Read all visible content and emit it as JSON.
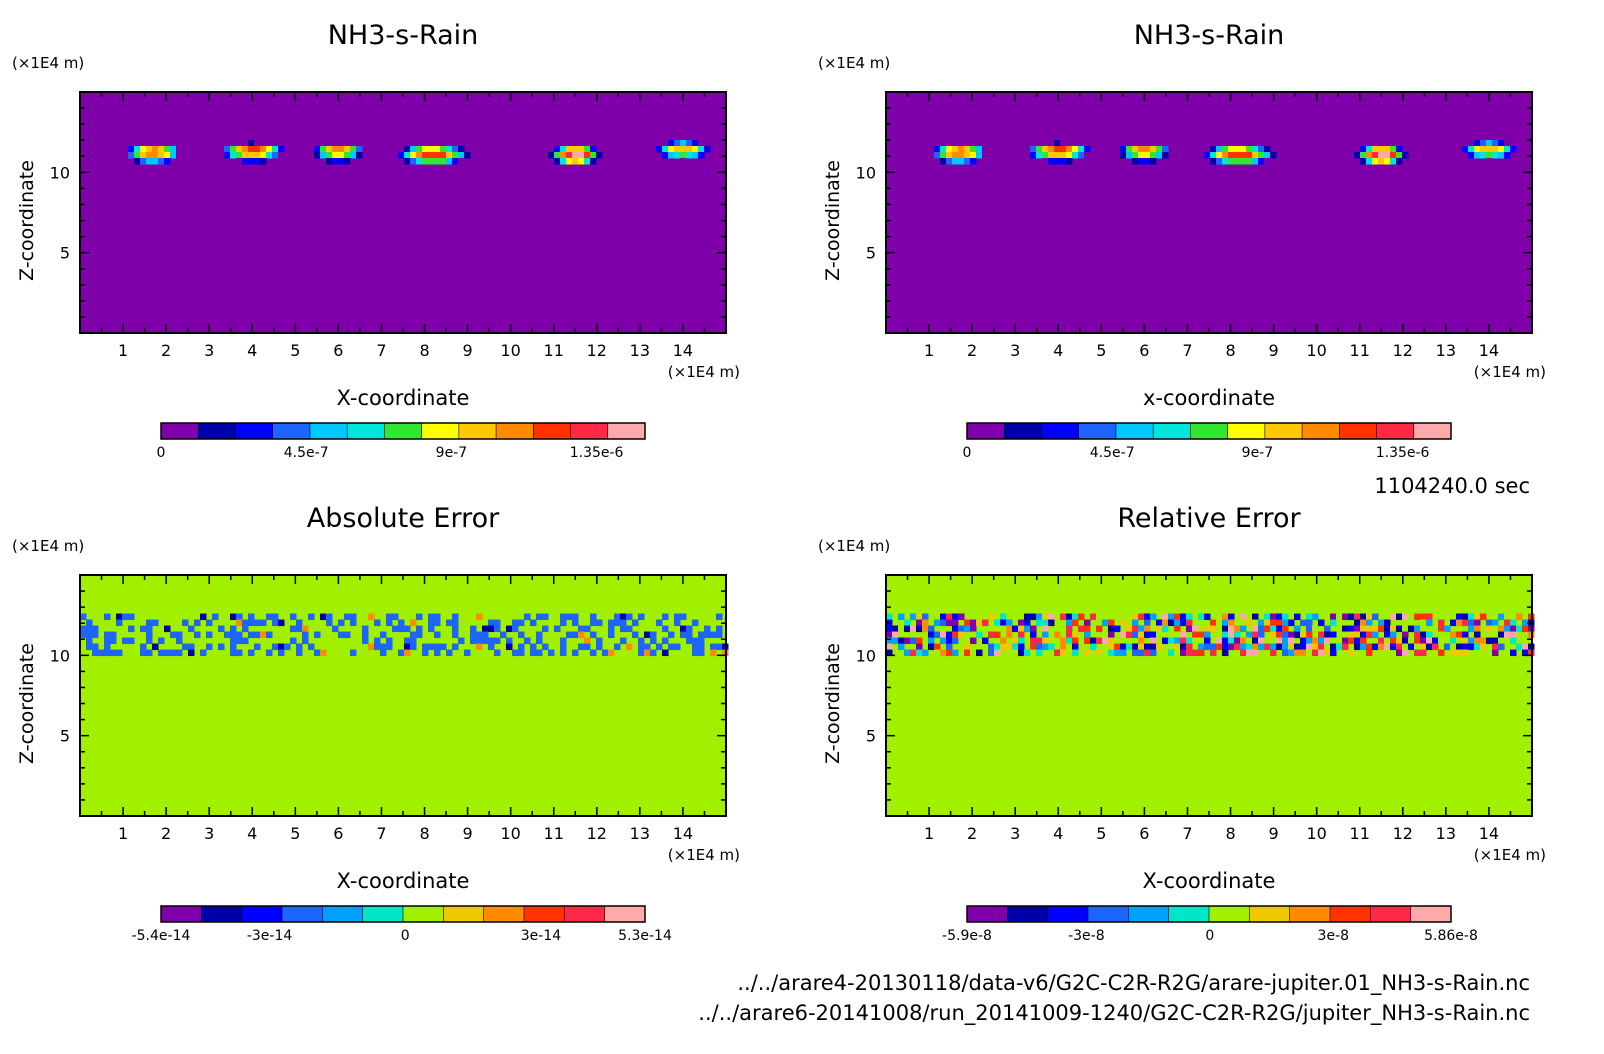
{
  "figure": {
    "time_label": "1104240.0 sec",
    "files": [
      "../../arare4-20130118/data-v6/G2C-C2R-R2G/arare-jupiter.01_NH3-s-Rain.nc",
      "../../arare6-20141008/run_20141009-1240/G2C-C2R-R2G/jupiter_NH3-s-Rain.nc"
    ]
  },
  "chart_data": [
    {
      "type": "heatmap",
      "title": "NH3-s-Rain",
      "xlabel": "X-coordinate",
      "ylabel": "Z-coordinate",
      "x_unit": "(×1E4 m)",
      "z_unit": "(×1E4 m)",
      "xlim": [
        0,
        15
      ],
      "zlim": [
        0,
        15
      ],
      "xticks": [
        1,
        2,
        3,
        4,
        5,
        6,
        7,
        8,
        9,
        10,
        11,
        12,
        13,
        14
      ],
      "zticks": [
        5,
        10
      ],
      "background_color": "#7f00aa",
      "field": "blobs",
      "blobs": [
        {
          "x": 1.7,
          "z": 11.3,
          "w": 0.65,
          "peak": 1.2e-06
        },
        {
          "x": 4.0,
          "z": 11.4,
          "w": 0.75,
          "peak": 1.2e-06
        },
        {
          "x": 6.0,
          "z": 11.4,
          "w": 0.6,
          "peak": 1.1e-06
        },
        {
          "x": 8.2,
          "z": 11.2,
          "w": 0.85,
          "peak": 1.3e-06
        },
        {
          "x": 11.5,
          "z": 11.2,
          "w": 0.6,
          "peak": 1.5e-06
        },
        {
          "x": 14.0,
          "z": 11.5,
          "w": 0.65,
          "peak": 1e-06
        }
      ],
      "colorbar": {
        "colors": [
          "#7f00aa",
          "#0000aa",
          "#0000ff",
          "#1e64ff",
          "#00c8ff",
          "#00e6dc",
          "#32e632",
          "#ffff00",
          "#ffc800",
          "#ff8c00",
          "#ff3200",
          "#ff2846",
          "#ffaaaa"
        ],
        "tick_labels": [
          "0",
          "4.5e-7",
          "9e-7",
          "1.35e-6"
        ],
        "tick_values": [
          0,
          4.5e-07,
          9e-07,
          1.35e-06
        ],
        "range": [
          0,
          1.5e-06
        ]
      }
    },
    {
      "type": "heatmap",
      "title": "NH3-s-Rain",
      "xlabel": "x-coordinate",
      "ylabel": "Z-coordinate",
      "x_unit": "(×1E4 m)",
      "z_unit": "(×1E4 m)",
      "xlim": [
        0,
        15
      ],
      "zlim": [
        0,
        15
      ],
      "xticks": [
        1,
        2,
        3,
        4,
        5,
        6,
        7,
        8,
        9,
        10,
        11,
        12,
        13,
        14
      ],
      "zticks": [
        5,
        10
      ],
      "background_color": "#7f00aa",
      "field": "blobs",
      "blobs": [
        {
          "x": 1.7,
          "z": 11.3,
          "w": 0.65,
          "peak": 1.2e-06
        },
        {
          "x": 4.0,
          "z": 11.4,
          "w": 0.75,
          "peak": 1.2e-06
        },
        {
          "x": 6.0,
          "z": 11.4,
          "w": 0.6,
          "peak": 1.1e-06
        },
        {
          "x": 8.2,
          "z": 11.2,
          "w": 0.85,
          "peak": 1.3e-06
        },
        {
          "x": 11.5,
          "z": 11.2,
          "w": 0.6,
          "peak": 1.5e-06
        },
        {
          "x": 14.0,
          "z": 11.5,
          "w": 0.65,
          "peak": 1e-06
        }
      ],
      "colorbar": {
        "colors": [
          "#7f00aa",
          "#0000aa",
          "#0000ff",
          "#1e64ff",
          "#00c8ff",
          "#00e6dc",
          "#32e632",
          "#ffff00",
          "#ffc800",
          "#ff8c00",
          "#ff3200",
          "#ff2846",
          "#ffaaaa"
        ],
        "tick_labels": [
          "0",
          "4.5e-7",
          "9e-7",
          "1.35e-6"
        ],
        "tick_values": [
          0,
          4.5e-07,
          9e-07,
          1.35e-06
        ],
        "range": [
          0,
          1.5e-06
        ]
      }
    },
    {
      "type": "heatmap",
      "title": "Absolute Error",
      "xlabel": "X-coordinate",
      "ylabel": "Z-coordinate",
      "x_unit": "(×1E4 m)",
      "z_unit": "(×1E4 m)",
      "xlim": [
        0,
        15
      ],
      "zlim": [
        0,
        15
      ],
      "xticks": [
        1,
        2,
        3,
        4,
        5,
        6,
        7,
        8,
        9,
        10,
        11,
        12,
        13,
        14
      ],
      "zticks": [
        5,
        10
      ],
      "background_color": "#a0f000",
      "field": "noise",
      "noise": {
        "z_min": 10.2,
        "z_max": 12.6,
        "seed": 7,
        "mode": "abs"
      },
      "colorbar": {
        "colors": [
          "#7f00aa",
          "#0000aa",
          "#0000ff",
          "#1e64ff",
          "#00a0ff",
          "#00e6c8",
          "#a0f000",
          "#f0c800",
          "#ff8c00",
          "#ff3200",
          "#ff2846",
          "#ffaaaa"
        ],
        "tick_labels": [
          "-5.4e-14",
          "-3e-14",
          "0",
          "3e-14",
          "5.3e-14"
        ],
        "tick_values": [
          -5.4e-14,
          -3e-14,
          0,
          3e-14,
          5.3e-14
        ],
        "range": [
          -5.4e-14,
          5.3e-14
        ]
      }
    },
    {
      "type": "heatmap",
      "title": "Relative Error",
      "xlabel": "X-coordinate",
      "ylabel": "Z-coordinate",
      "x_unit": "(×1E4 m)",
      "z_unit": "(×1E4 m)",
      "xlim": [
        0,
        15
      ],
      "zlim": [
        0,
        15
      ],
      "xticks": [
        1,
        2,
        3,
        4,
        5,
        6,
        7,
        8,
        9,
        10,
        11,
        12,
        13,
        14
      ],
      "zticks": [
        5,
        10
      ],
      "background_color": "#a0f000",
      "field": "noise",
      "noise": {
        "z_min": 10.0,
        "z_max": 12.6,
        "seed": 13,
        "mode": "rel"
      },
      "colorbar": {
        "colors": [
          "#7f00aa",
          "#0000aa",
          "#0000ff",
          "#1e64ff",
          "#00a0ff",
          "#00e6c8",
          "#a0f000",
          "#f0c800",
          "#ff8c00",
          "#ff3200",
          "#ff2846",
          "#ffaaaa"
        ],
        "tick_labels": [
          "-5.9e-8",
          "-3e-8",
          "0",
          "3e-8",
          "5.86e-8"
        ],
        "tick_values": [
          -5.9e-08,
          -3e-08,
          0,
          3e-08,
          5.86e-08
        ],
        "range": [
          -5.9e-08,
          5.86e-08
        ]
      }
    }
  ]
}
